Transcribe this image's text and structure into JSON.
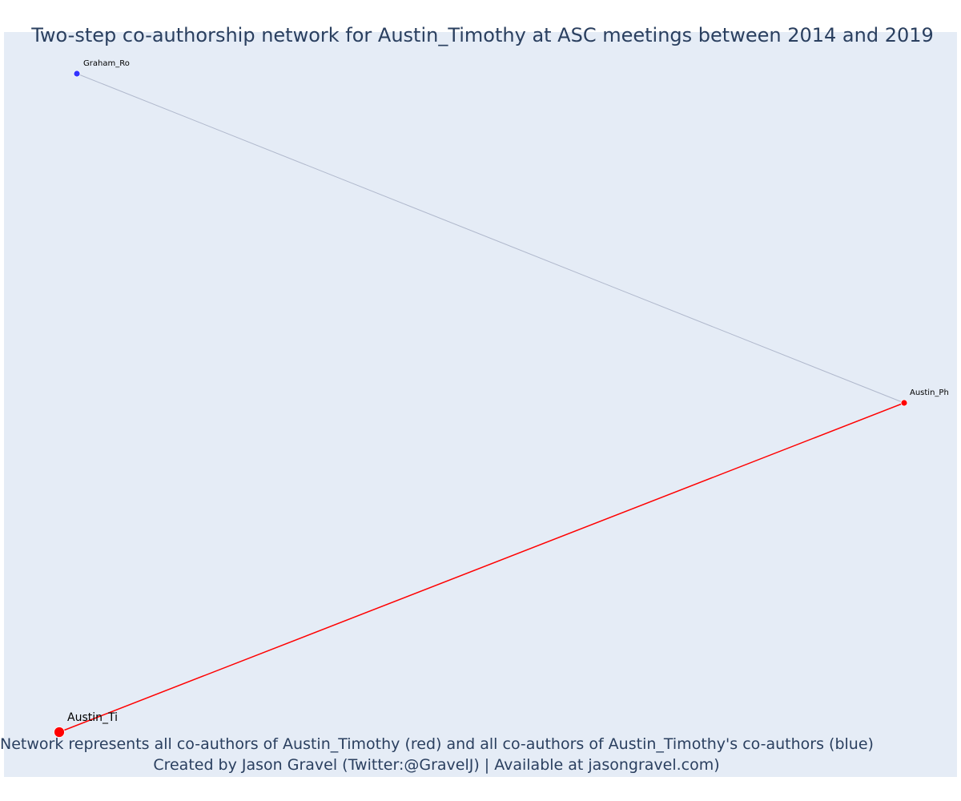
{
  "title": "Two-step co-authorship network for Austin_Timothy at ASC meetings between 2014 and 2019",
  "footnote": {
    "line1": "Network represents all co-authors of Austin_Timothy (red) and all co-authors of Austin_Timothy's co-authors (blue)",
    "line2": "Created by Jason Gravel (Twitter:@GravelJ) | Available at jasongravel.com)"
  },
  "colors": {
    "direct": "#ff0000",
    "indirect": "#3333ff",
    "edge_direct": "#ff0000",
    "edge_indirect": "#b0b8cc",
    "background": "#e5ecf6"
  },
  "network": {
    "nodes": [
      {
        "id": "Austin_Ti",
        "label": "Austin_Ti",
        "group": "focal"
      },
      {
        "id": "Austin_Ph",
        "label": "Austin_Ph",
        "group": "direct"
      },
      {
        "id": "Graham_Ro",
        "label": "Graham_Ro",
        "group": "indirect"
      }
    ],
    "edges": [
      {
        "source": "Austin_Ti",
        "target": "Austin_Ph",
        "type": "direct"
      },
      {
        "source": "Austin_Ph",
        "target": "Graham_Ro",
        "type": "indirect"
      }
    ]
  }
}
